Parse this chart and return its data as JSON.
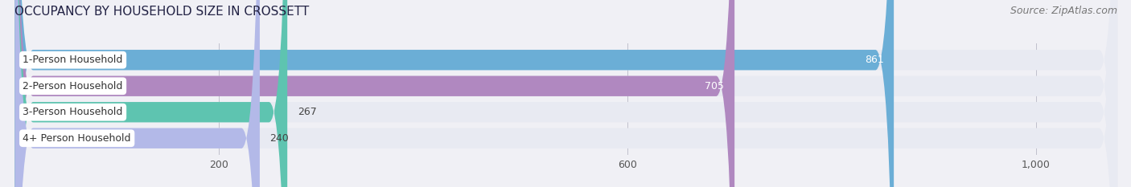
{
  "title": "OCCUPANCY BY HOUSEHOLD SIZE IN CROSSETT",
  "source": "Source: ZipAtlas.com",
  "categories": [
    "1-Person Household",
    "2-Person Household",
    "3-Person Household",
    "4+ Person Household"
  ],
  "values": [
    861,
    705,
    267,
    240
  ],
  "bar_colors": [
    "#6baed6",
    "#b088c0",
    "#5ec4b0",
    "#b3b9e8"
  ],
  "bar_bg_color": "#e8eaf2",
  "label_colors": [
    "#ffffff",
    "#ffffff",
    "#444444",
    "#444444"
  ],
  "xlim": [
    0,
    1080
  ],
  "xticks": [
    200,
    600,
    1000
  ],
  "title_fontsize": 11,
  "source_fontsize": 9,
  "bar_label_fontsize": 9,
  "cat_label_fontsize": 9,
  "background_color": "#f0f0f5"
}
